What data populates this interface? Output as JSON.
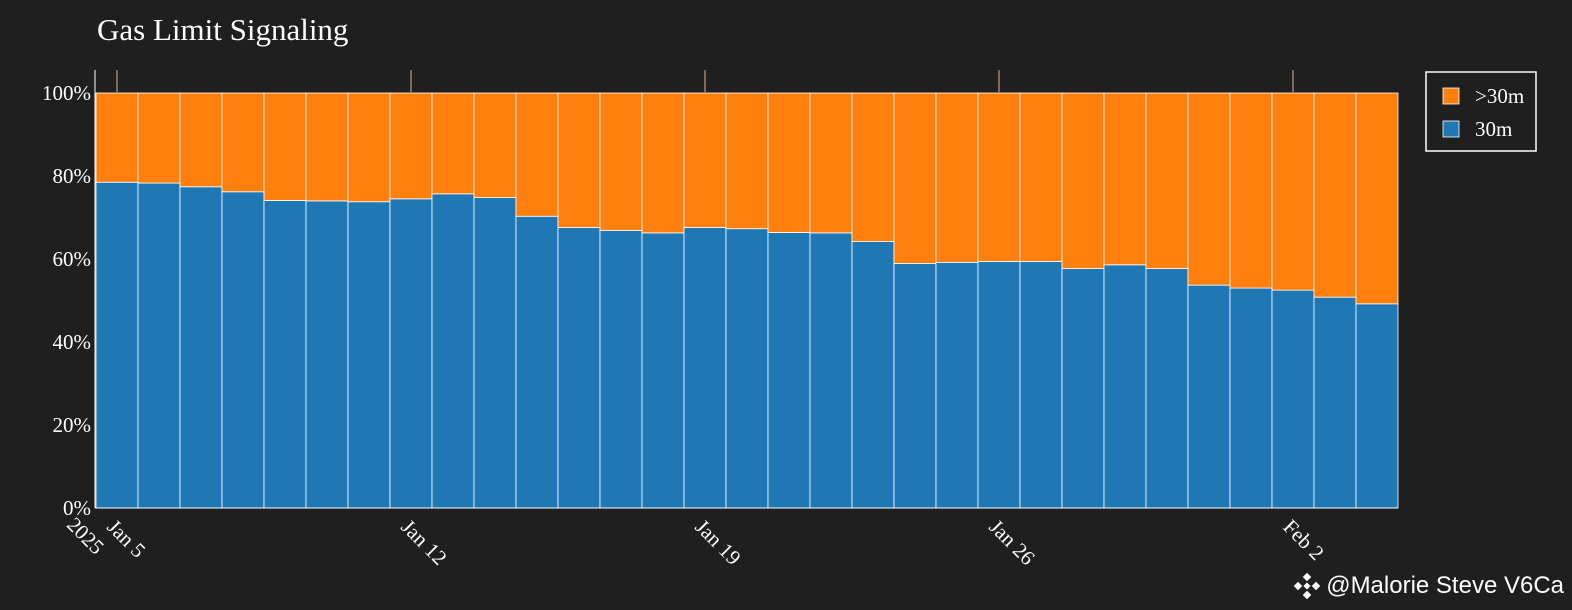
{
  "chart_data": {
    "type": "bar",
    "stacked": true,
    "normalized_percent": true,
    "title": "Gas Limit Signaling",
    "xlabel": "",
    "ylabel": "",
    "ylim": [
      0,
      100
    ],
    "yticks": [
      "0%",
      "20%",
      "40%",
      "60%",
      "80%",
      "100%"
    ],
    "categories": [
      "2025-01-05",
      "2025-01-06",
      "2025-01-07",
      "2025-01-08",
      "2025-01-09",
      "2025-01-10",
      "2025-01-11",
      "2025-01-12",
      "2025-01-13",
      "2025-01-14",
      "2025-01-15",
      "2025-01-16",
      "2025-01-17",
      "2025-01-18",
      "2025-01-19",
      "2025-01-20",
      "2025-01-21",
      "2025-01-22",
      "2025-01-23",
      "2025-01-24",
      "2025-01-25",
      "2025-01-26",
      "2025-01-27",
      "2025-01-28",
      "2025-01-29",
      "2025-01-30",
      "2025-01-31",
      "2025-02-01",
      "2025-02-02",
      "2025-02-03",
      "2025-02-04"
    ],
    "xticks": [
      {
        "date": "2025-01-05",
        "label": "Jan 5",
        "sublabel": "2025"
      },
      {
        "date": "2025-01-12",
        "label": "Jan 12",
        "sublabel": ""
      },
      {
        "date": "2025-01-19",
        "label": "Jan 19",
        "sublabel": ""
      },
      {
        "date": "2025-01-26",
        "label": "Jan 26",
        "sublabel": ""
      },
      {
        "date": "2025-02-02",
        "label": "Feb 2",
        "sublabel": ""
      }
    ],
    "series": [
      {
        "name": "30m",
        "color": "#1f77b4",
        "values": [
          78.5,
          78.3,
          77.4,
          76.2,
          74.1,
          74.0,
          73.8,
          74.5,
          75.7,
          74.8,
          70.3,
          67.6,
          66.9,
          66.3,
          67.6,
          67.3,
          66.4,
          66.3,
          64.2,
          58.9,
          59.2,
          59.4,
          59.4,
          57.7,
          58.6,
          57.7,
          53.7,
          53.0,
          52.5,
          50.8,
          49.2
        ]
      },
      {
        "name": ">30m",
        "color": "#ff7f0e",
        "values": [
          21.5,
          21.7,
          22.6,
          23.8,
          25.9,
          26.0,
          26.2,
          25.5,
          24.3,
          25.2,
          29.7,
          32.4,
          33.1,
          33.7,
          32.4,
          32.7,
          33.6,
          33.7,
          35.8,
          41.1,
          40.8,
          40.6,
          40.6,
          42.3,
          41.4,
          42.3,
          46.3,
          47.0,
          47.5,
          49.2,
          50.8
        ]
      }
    ],
    "legend": {
      "placement": "top-right",
      "order": [
        ">30m",
        "30m"
      ]
    },
    "grid": false,
    "background": "#1f1f1f",
    "bar_edge_color": "#ffffff"
  },
  "watermark": {
    "text": "@Malorie Steve V6Ca",
    "icon": "binance-logo-icon"
  }
}
